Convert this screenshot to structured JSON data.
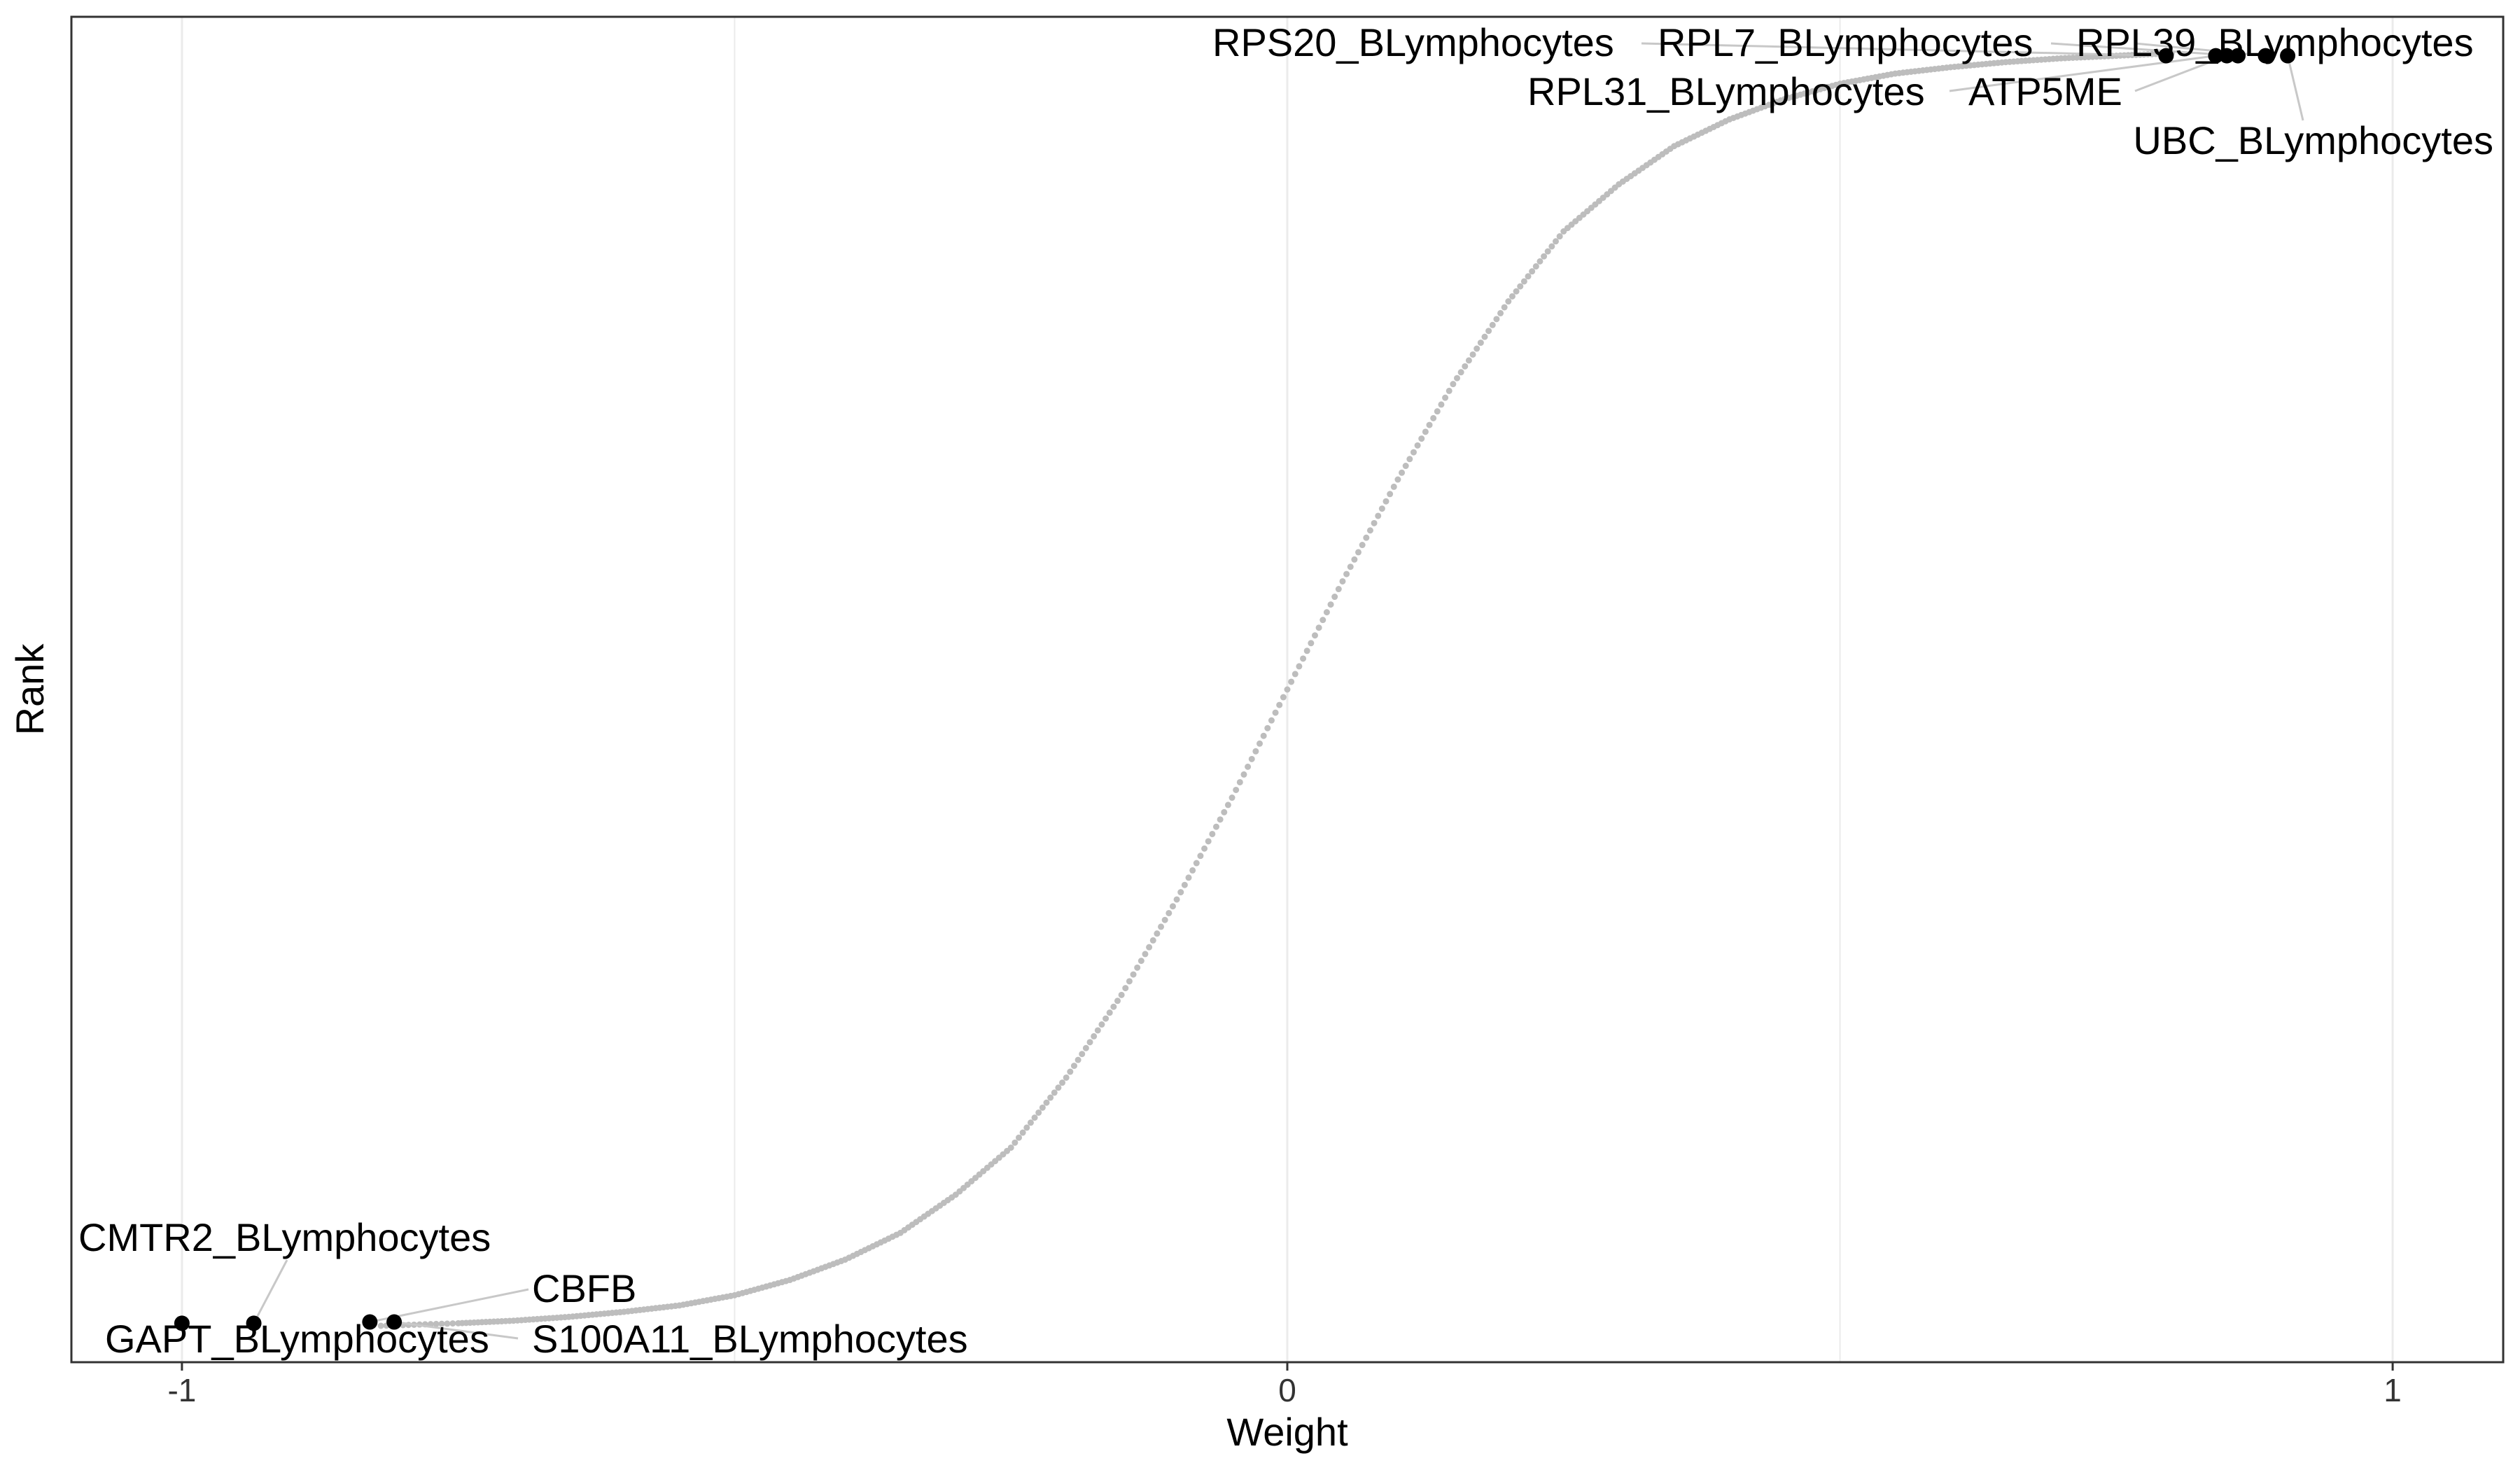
{
  "chart_data": {
    "type": "scatter",
    "title": "",
    "xlabel": "Weight",
    "ylabel": "Rank",
    "xlim": [
      -1.1,
      1.1
    ],
    "ylim": [
      0,
      1
    ],
    "x_ticks": [
      -1,
      0,
      1
    ],
    "x_tick_labels": [
      "-1",
      "0",
      "1"
    ],
    "grid": true,
    "legend": "none",
    "colors": {
      "curve": "#bdbdbd",
      "highlight": "#000000",
      "leader": "#c8c8c8",
      "grid": "#ebebeb",
      "border": "#333333"
    },
    "curve": {
      "description": "sorted weights (gray points)",
      "x": [
        -0.82,
        -0.75,
        -0.7,
        -0.65,
        -0.6,
        -0.55,
        -0.5,
        -0.45,
        -0.4,
        -0.35,
        -0.3,
        -0.25,
        -0.2,
        -0.15,
        -0.1,
        -0.05,
        0.0,
        0.05,
        0.1,
        0.15,
        0.2,
        0.25,
        0.3,
        0.35,
        0.4,
        0.45,
        0.5,
        0.55,
        0.6,
        0.65,
        0.7,
        0.75,
        0.8
      ],
      "y": [
        0.0,
        0.002,
        0.004,
        0.007,
        0.011,
        0.016,
        0.024,
        0.036,
        0.052,
        0.073,
        0.103,
        0.14,
        0.195,
        0.26,
        0.335,
        0.415,
        0.5,
        0.585,
        0.665,
        0.74,
        0.805,
        0.86,
        0.897,
        0.927,
        0.948,
        0.964,
        0.976,
        0.984,
        0.989,
        0.993,
        0.996,
        0.998,
        1.0
      ]
    },
    "highlighted": [
      {
        "name": "GAPT_BLymphocytes",
        "x": -1.0,
        "y": 0.002
      },
      {
        "name": "CMTR2_BLymphocytes",
        "x": -0.935,
        "y": 0.002
      },
      {
        "name": "CBFB",
        "x": -0.83,
        "y": 0.003
      },
      {
        "name": "S100A11_BLymphocytes",
        "x": -0.808,
        "y": 0.003
      },
      {
        "name": "RPS20_BLymphocytes",
        "x": 0.795,
        "y": 0.998
      },
      {
        "name": "RPL31_BLymphocytes",
        "x": 0.84,
        "y": 0.998
      },
      {
        "name": "ATP5ME",
        "x": 0.85,
        "y": 0.998
      },
      {
        "name": "RPL7_BLymphocytes",
        "x": 0.86,
        "y": 0.998
      },
      {
        "name": "RPL39_BLymphocytes",
        "x": 0.885,
        "y": 0.998
      },
      {
        "name": "UBC_BLymphocytes",
        "x": 0.905,
        "y": 0.998
      }
    ]
  }
}
